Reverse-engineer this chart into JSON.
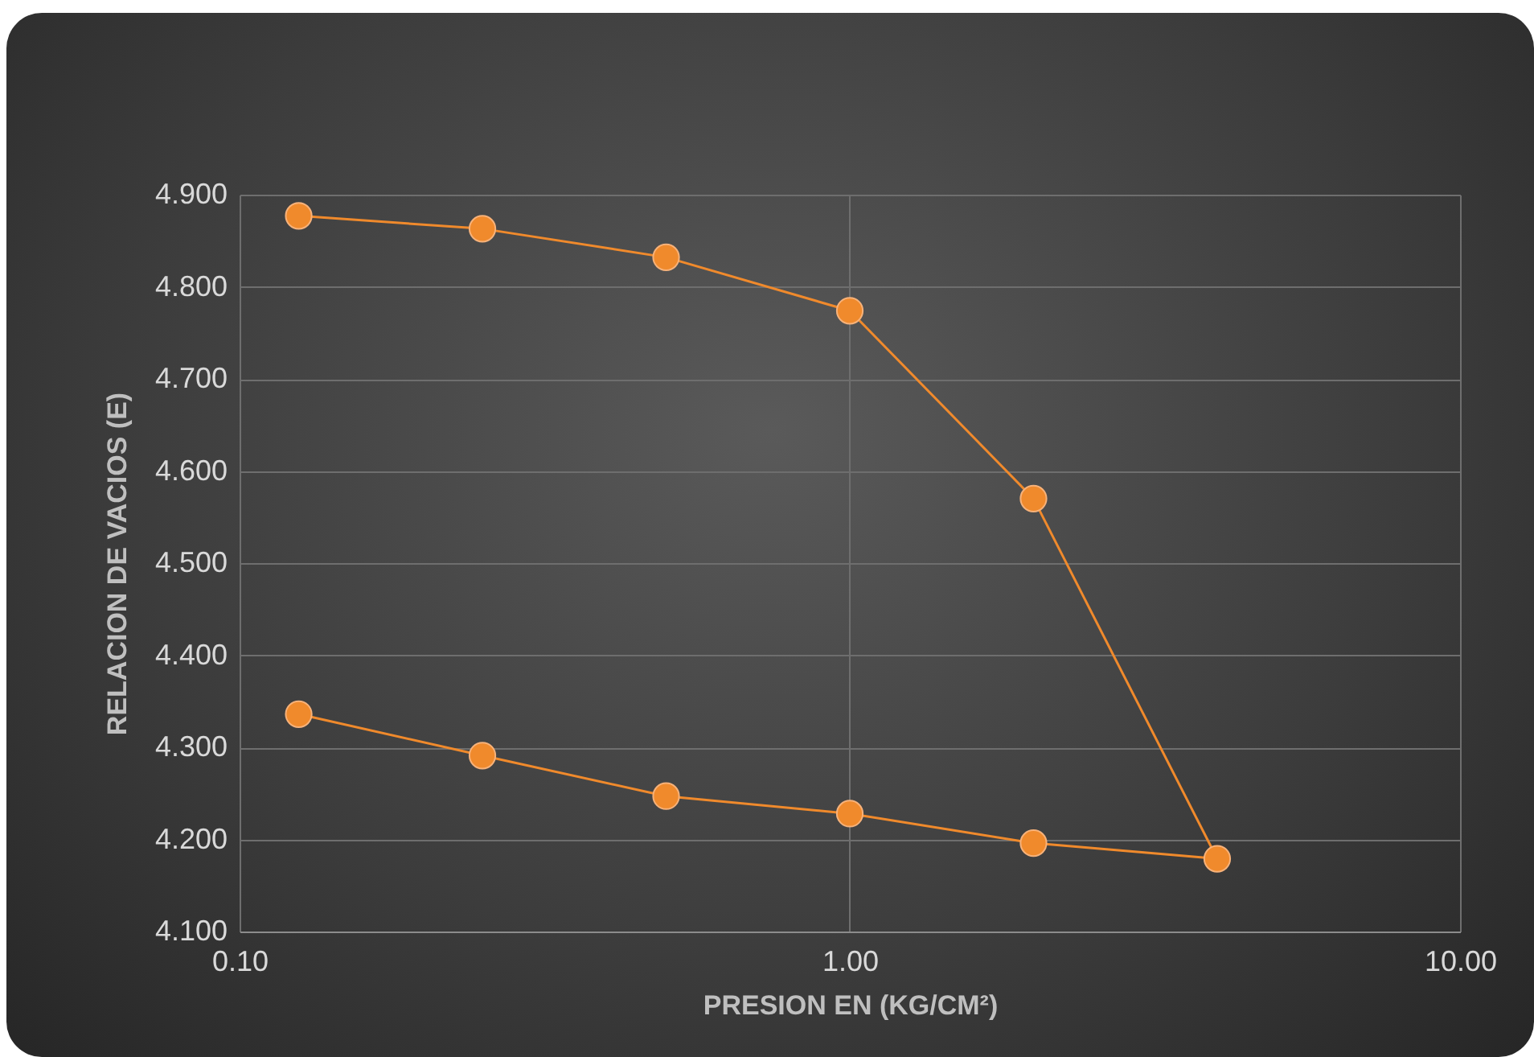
{
  "chart_data": {
    "type": "line",
    "xlabel": "PRESION EN (KG/CM²)",
    "ylabel": "RELACION DE VACIOS (E)",
    "series": [
      {
        "color": "#f08a2c",
        "x": [
          0.125,
          0.25,
          0.5,
          1,
          2,
          4,
          2,
          1,
          0.5,
          0.25,
          0.125
        ],
        "values": [
          4.877,
          4.863,
          4.832,
          4.774,
          4.57,
          4.179,
          4.196,
          4.228,
          4.247,
          4.291,
          4.336
        ]
      }
    ],
    "log": "x",
    "xlim": [
      0.1,
      10
    ],
    "ylim": [
      4.1,
      4.9
    ],
    "xticks": [
      {
        "value": 0.1,
        "label": "0.10"
      },
      {
        "value": 1,
        "label": "1.00"
      },
      {
        "value": 10,
        "label": "10.00"
      }
    ],
    "yticks": [
      {
        "value": 4.1,
        "label": "4.100"
      },
      {
        "value": 4.2,
        "label": "4.200"
      },
      {
        "value": 4.3,
        "label": "4.300"
      },
      {
        "value": 4.4,
        "label": "4.400"
      },
      {
        "value": 4.5,
        "label": "4.500"
      },
      {
        "value": 4.6,
        "label": "4.600"
      },
      {
        "value": 4.7,
        "label": "4.700"
      },
      {
        "value": 4.8,
        "label": "4.800"
      },
      {
        "value": 4.9,
        "label": "4.900"
      }
    ],
    "grid": true,
    "marker": "circle",
    "line_style": "solid"
  }
}
